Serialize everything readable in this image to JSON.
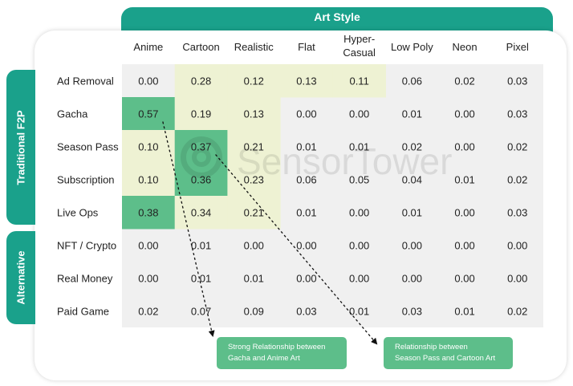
{
  "column_group_title": "Art Style",
  "row_groups": [
    {
      "title": "Traditional F2P"
    },
    {
      "title": "Alternative"
    }
  ],
  "watermark": "SensorTower",
  "colors": {
    "banner": "#1aa18b",
    "cell_bg": "#f0f0f0",
    "highlight_strong": "#5dbe8a",
    "highlight_light": "#eef2d3",
    "callout": "#5dbe8a"
  },
  "callouts": [
    {
      "line1": "Strong Relationship between",
      "line2": "Gacha and Anime Art"
    },
    {
      "line1": "Relationship between",
      "line2": "Season Pass and Cartoon Art"
    }
  ],
  "chart_data": {
    "type": "heatmap",
    "x_categories": [
      "Anime",
      "Cartoon",
      "Realistic",
      "Flat",
      "Hyper-\nCasual",
      "Low Poly",
      "Neon",
      "Pixel"
    ],
    "y_categories": [
      "Ad Removal",
      "Gacha",
      "Season Pass",
      "Subscription",
      "Live Ops",
      "NFT / Crypto",
      "Real Money",
      "Paid Game"
    ],
    "values": [
      [
        "0.00",
        "0.28",
        "0.12",
        "0.13",
        "0.11",
        "0.06",
        "0.02",
        "0.03"
      ],
      [
        "0.57",
        "0.19",
        "0.13",
        "0.00",
        "0.00",
        "0.01",
        "0.00",
        "0.03"
      ],
      [
        "0.10",
        "0.37",
        "0.21",
        "0.01",
        "0.01",
        "0.02",
        "0.00",
        "0.02"
      ],
      [
        "0.10",
        "0.36",
        "0.23",
        "0.06",
        "0.05",
        "0.04",
        "0.01",
        "0.02"
      ],
      [
        "0.38",
        "0.34",
        "0.21",
        "0.01",
        "0.00",
        "0.01",
        "0.00",
        "0.03"
      ],
      [
        "0.00",
        "0.01",
        "0.00",
        "0.00",
        "0.00",
        "0.00",
        "0.00",
        "0.00"
      ],
      [
        "0.00",
        "0.01",
        "0.01",
        "0.00",
        "0.00",
        "0.00",
        "0.00",
        "0.00"
      ],
      [
        "0.02",
        "0.07",
        "0.09",
        "0.03",
        "0.01",
        "0.03",
        "0.01",
        "0.02"
      ]
    ],
    "highlight_strong": [
      [
        1,
        0
      ],
      [
        4,
        0
      ],
      [
        2,
        1
      ],
      [
        3,
        1
      ]
    ],
    "highlight_light": [
      [
        0,
        1
      ],
      [
        0,
        2
      ],
      [
        0,
        3
      ],
      [
        0,
        4
      ],
      [
        1,
        1
      ],
      [
        1,
        2
      ],
      [
        2,
        0
      ],
      [
        2,
        2
      ],
      [
        3,
        0
      ],
      [
        3,
        2
      ],
      [
        4,
        1
      ],
      [
        4,
        2
      ]
    ],
    "annotations": [
      {
        "from_cell": [
          1,
          0
        ],
        "callout": 0
      },
      {
        "from_cell": [
          2,
          1
        ],
        "callout": 1
      }
    ]
  }
}
